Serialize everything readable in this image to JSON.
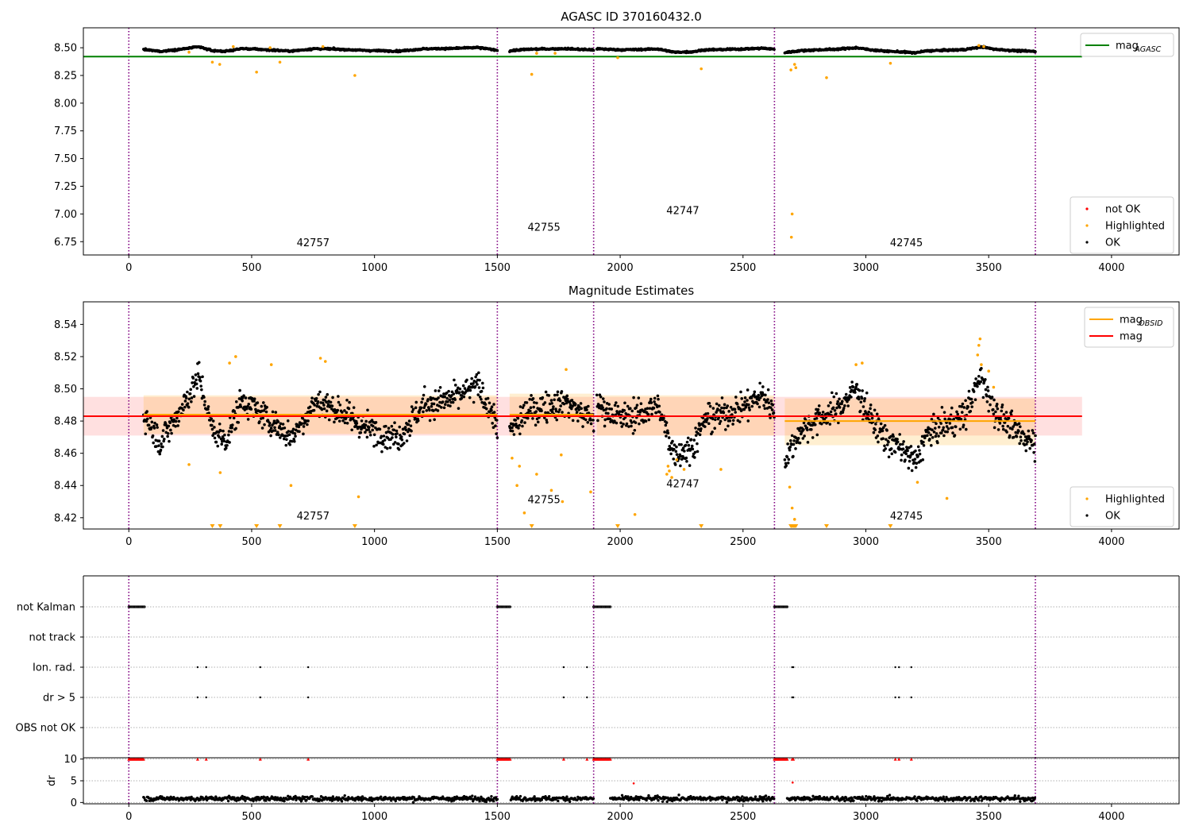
{
  "chart_data": [
    {
      "id": "p1",
      "type": "scatter",
      "title": "AGASC ID 370160432.0",
      "xlim": [
        -185,
        4275
      ],
      "ylim": [
        6.63,
        8.68
      ],
      "xticks": [
        0,
        500,
        1000,
        1500,
        2000,
        2500,
        3000,
        3500,
        4000
      ],
      "yticks": [
        6.75,
        7.0,
        7.25,
        7.5,
        7.75,
        8.0,
        8.25,
        8.5
      ],
      "ytick_labels": [
        "6.75",
        "7.00",
        "7.25",
        "7.50",
        "7.75",
        "8.00",
        "8.25",
        "8.50"
      ],
      "obs_boundaries": [
        0,
        1500,
        1892,
        2628,
        3690
      ],
      "obs_labels": [
        {
          "text": "42757",
          "x": 750,
          "y": 6.71
        },
        {
          "text": "42755",
          "x": 1690,
          "y": 6.85
        },
        {
          "text": "42747",
          "x": 2255,
          "y": 7.0
        },
        {
          "text": "42745",
          "x": 3165,
          "y": 6.71
        }
      ],
      "segments": [
        {
          "x0": 60,
          "x1": 1500,
          "mean": 8.483
        },
        {
          "x0": 1550,
          "x1": 1892,
          "mean": 8.482
        },
        {
          "x0": 1905,
          "x1": 2628,
          "mean": 8.483
        },
        {
          "x0": 2670,
          "x1": 3690,
          "mean": 8.48
        }
      ],
      "hlines": [
        {
          "name": "mag_AGASC",
          "y": 8.42,
          "x0": -185,
          "x1": 3880,
          "color": "#008000"
        }
      ],
      "highlighted": [
        [
          245,
          8.46
        ],
        [
          340,
          8.37
        ],
        [
          370,
          8.35
        ],
        [
          425,
          8.51
        ],
        [
          520,
          8.28
        ],
        [
          575,
          8.5
        ],
        [
          615,
          8.37
        ],
        [
          790,
          8.51
        ],
        [
          920,
          8.25
        ],
        [
          1640,
          8.26
        ],
        [
          1660,
          8.45
        ],
        [
          1735,
          8.45
        ],
        [
          1990,
          8.41
        ],
        [
          2330,
          8.31
        ],
        [
          2695,
          8.3
        ],
        [
          2700,
          7.0
        ],
        [
          2697,
          6.79
        ],
        [
          2710,
          8.35
        ],
        [
          2715,
          8.32
        ],
        [
          2840,
          8.23
        ],
        [
          3100,
          8.36
        ],
        [
          3460,
          8.52
        ],
        [
          3480,
          8.51
        ]
      ],
      "legends": [
        {
          "items": [
            {
              "label": "mag",
              "sub": "AGASC",
              "kind": "line",
              "color": "#008000"
            }
          ]
        },
        {
          "items": [
            {
              "label": "not OK",
              "kind": "dot",
              "color": "#ff0000"
            },
            {
              "label": "Highlighted",
              "kind": "dot",
              "color": "#ffa500"
            },
            {
              "label": "OK",
              "kind": "dot",
              "color": "#000000"
            }
          ]
        }
      ]
    },
    {
      "id": "p2",
      "type": "scatter",
      "title": "Magnitude Estimates",
      "xlim": [
        -185,
        4275
      ],
      "ylim": [
        8.413,
        8.554
      ],
      "xticks": [
        0,
        500,
        1000,
        1500,
        2000,
        2500,
        3000,
        3500,
        4000
      ],
      "yticks": [
        8.42,
        8.44,
        8.46,
        8.48,
        8.5,
        8.52,
        8.54
      ],
      "ytick_labels": [
        "8.42",
        "8.44",
        "8.46",
        "8.48",
        "8.50",
        "8.52",
        "8.54"
      ],
      "obs_boundaries": [
        0,
        1500,
        1892,
        2628,
        3690
      ],
      "obs_labels": [
        {
          "text": "42757",
          "x": 750,
          "y": 8.419
        },
        {
          "text": "42755",
          "x": 1690,
          "y": 8.429
        },
        {
          "text": "42747",
          "x": 2255,
          "y": 8.439
        },
        {
          "text": "42745",
          "x": 3165,
          "y": 8.419
        }
      ],
      "mag": {
        "y": 8.483,
        "band": [
          8.471,
          8.495
        ],
        "x0": -185,
        "x1": 3880
      },
      "mag_obsid": [
        {
          "x0": 60,
          "x1": 1500,
          "y": 8.484,
          "band": [
            8.472,
            8.496
          ]
        },
        {
          "x0": 1550,
          "x1": 1892,
          "y": 8.484,
          "band": [
            8.471,
            8.497
          ]
        },
        {
          "x0": 1905,
          "x1": 2628,
          "y": 8.483,
          "band": [
            8.471,
            8.496
          ]
        },
        {
          "x0": 2670,
          "x1": 3690,
          "y": 8.48,
          "band": [
            8.465,
            8.494
          ]
        }
      ],
      "wander": [
        {
          "x0": 60,
          "x1": 1500,
          "points": [
            [
              60,
              8.484
            ],
            [
              130,
              8.467
            ],
            [
              220,
              8.489
            ],
            [
              285,
              8.508
            ],
            [
              340,
              8.474
            ],
            [
              395,
              8.468
            ],
            [
              460,
              8.493
            ],
            [
              560,
              8.482
            ],
            [
              660,
              8.47
            ],
            [
              760,
              8.492
            ],
            [
              850,
              8.487
            ],
            [
              960,
              8.476
            ],
            [
              1100,
              8.47
            ],
            [
              1200,
              8.49
            ],
            [
              1320,
              8.494
            ],
            [
              1420,
              8.502
            ],
            [
              1500,
              8.478
            ]
          ]
        },
        {
          "x0": 1550,
          "x1": 1892,
          "points": [
            [
              1550,
              8.472
            ],
            [
              1620,
              8.486
            ],
            [
              1700,
              8.489
            ],
            [
              1780,
              8.492
            ],
            [
              1850,
              8.484
            ],
            [
              1892,
              8.481
            ]
          ]
        },
        {
          "x0": 1905,
          "x1": 2628,
          "points": [
            [
              1905,
              8.49
            ],
            [
              2000,
              8.482
            ],
            [
              2080,
              8.484
            ],
            [
              2150,
              8.49
            ],
            [
              2220,
              8.46
            ],
            [
              2290,
              8.463
            ],
            [
              2350,
              8.482
            ],
            [
              2420,
              8.484
            ],
            [
              2500,
              8.489
            ],
            [
              2580,
              8.496
            ],
            [
              2628,
              8.486
            ]
          ]
        },
        {
          "x0": 2670,
          "x1": 3690,
          "points": [
            [
              2670,
              8.456
            ],
            [
              2730,
              8.473
            ],
            [
              2800,
              8.481
            ],
            [
              2880,
              8.487
            ],
            [
              2960,
              8.5
            ],
            [
              3020,
              8.482
            ],
            [
              3080,
              8.469
            ],
            [
              3150,
              8.462
            ],
            [
              3200,
              8.454
            ],
            [
              3250,
              8.472
            ],
            [
              3330,
              8.478
            ],
            [
              3400,
              8.483
            ],
            [
              3470,
              8.508
            ],
            [
              3520,
              8.488
            ],
            [
              3600,
              8.474
            ],
            [
              3690,
              8.467
            ]
          ]
        }
      ],
      "highlighted": [
        [
          245,
          8.453
        ],
        [
          372,
          8.448
        ],
        [
          410,
          8.516
        ],
        [
          435,
          8.52
        ],
        [
          580,
          8.515
        ],
        [
          660,
          8.44
        ],
        [
          780,
          8.519
        ],
        [
          800,
          8.517
        ],
        [
          935,
          8.433
        ],
        [
          1560,
          8.457
        ],
        [
          1590,
          8.452
        ],
        [
          1580,
          8.44
        ],
        [
          1610,
          8.423
        ],
        [
          1660,
          8.447
        ],
        [
          1720,
          8.437
        ],
        [
          1760,
          8.459
        ],
        [
          1765,
          8.43
        ],
        [
          1780,
          8.512
        ],
        [
          1880,
          8.436
        ],
        [
          2060,
          8.422
        ],
        [
          2190,
          8.447
        ],
        [
          2195,
          8.452
        ],
        [
          2200,
          8.449
        ],
        [
          2210,
          8.445
        ],
        [
          2230,
          8.456
        ],
        [
          2260,
          8.45
        ],
        [
          2410,
          8.45
        ],
        [
          2690,
          8.439
        ],
        [
          2700,
          8.426
        ],
        [
          2710,
          8.419
        ],
        [
          2960,
          8.515
        ],
        [
          2985,
          8.516
        ],
        [
          3210,
          8.442
        ],
        [
          3330,
          8.432
        ],
        [
          3455,
          8.521
        ],
        [
          3460,
          8.527
        ],
        [
          3465,
          8.531
        ],
        [
          3470,
          8.515
        ],
        [
          3500,
          8.511
        ],
        [
          3520,
          8.501
        ]
      ],
      "offscale_x": [
        340,
        372,
        520,
        615,
        920,
        1640,
        1990,
        2330,
        2695,
        2700,
        2705,
        2710,
        2715,
        2840,
        3100
      ],
      "legends": [
        {
          "items": [
            {
              "label": "mag",
              "sub": "OBSID",
              "kind": "line",
              "color": "#ffa500"
            },
            {
              "label": "mag",
              "kind": "line",
              "color": "#ff0000"
            }
          ]
        },
        {
          "items": [
            {
              "label": "Highlighted",
              "kind": "dot",
              "color": "#ffa500"
            },
            {
              "label": "OK",
              "kind": "dot",
              "color": "#000000"
            }
          ]
        }
      ]
    },
    {
      "id": "p3",
      "type": "scatter",
      "xlim": [
        -185,
        4275
      ],
      "categories": [
        "not Kalman",
        "not track",
        "Ion. rad.",
        "dr > 5",
        "OBS not OK"
      ],
      "flags": {
        "not Kalman": [
          [
            0,
            65
          ],
          [
            1500,
            1555
          ],
          [
            1892,
            1960
          ],
          [
            2628,
            2680
          ]
        ],
        "not track": [],
        "Ion. rad.": [
          280,
          315,
          535,
          730,
          1770,
          1865,
          2700,
          2705,
          3120,
          3135,
          3185
        ],
        "dr > 5": [
          280,
          315,
          535,
          730,
          1770,
          1865,
          2700,
          2705,
          3120,
          3135,
          3185
        ],
        "OBS not OK": []
      },
      "obs_boundaries": [
        0,
        1500,
        1892,
        2628,
        3690
      ]
    },
    {
      "id": "p4",
      "type": "scatter",
      "ylabel": "dr",
      "xlim": [
        -185,
        4275
      ],
      "ylim": [
        -0.3,
        10.3
      ],
      "xticks": [
        0,
        500,
        1000,
        1500,
        2000,
        2500,
        3000,
        3500,
        4000
      ],
      "yticks": [
        0,
        5,
        10
      ],
      "ytick_labels": [
        "0",
        "5",
        "10"
      ],
      "dr_capped": [
        [
          0,
          60
        ],
        [
          1500,
          1555
        ],
        [
          1892,
          1960
        ],
        [
          2628,
          2680
        ]
      ],
      "dr_capped_points": [
        280,
        315,
        535,
        730,
        1770,
        1865,
        2700,
        2705,
        3120,
        3135,
        3185
      ],
      "dr_mid": [
        [
          2055,
          4.4
        ],
        [
          2702,
          4.6
        ]
      ],
      "ok_ranges": [
        [
          60,
          1500
        ],
        [
          1555,
          1892
        ],
        [
          1960,
          2628
        ],
        [
          2680,
          3690
        ]
      ],
      "obs_boundaries": [
        0,
        1500,
        1892,
        2628,
        3690
      ]
    }
  ]
}
